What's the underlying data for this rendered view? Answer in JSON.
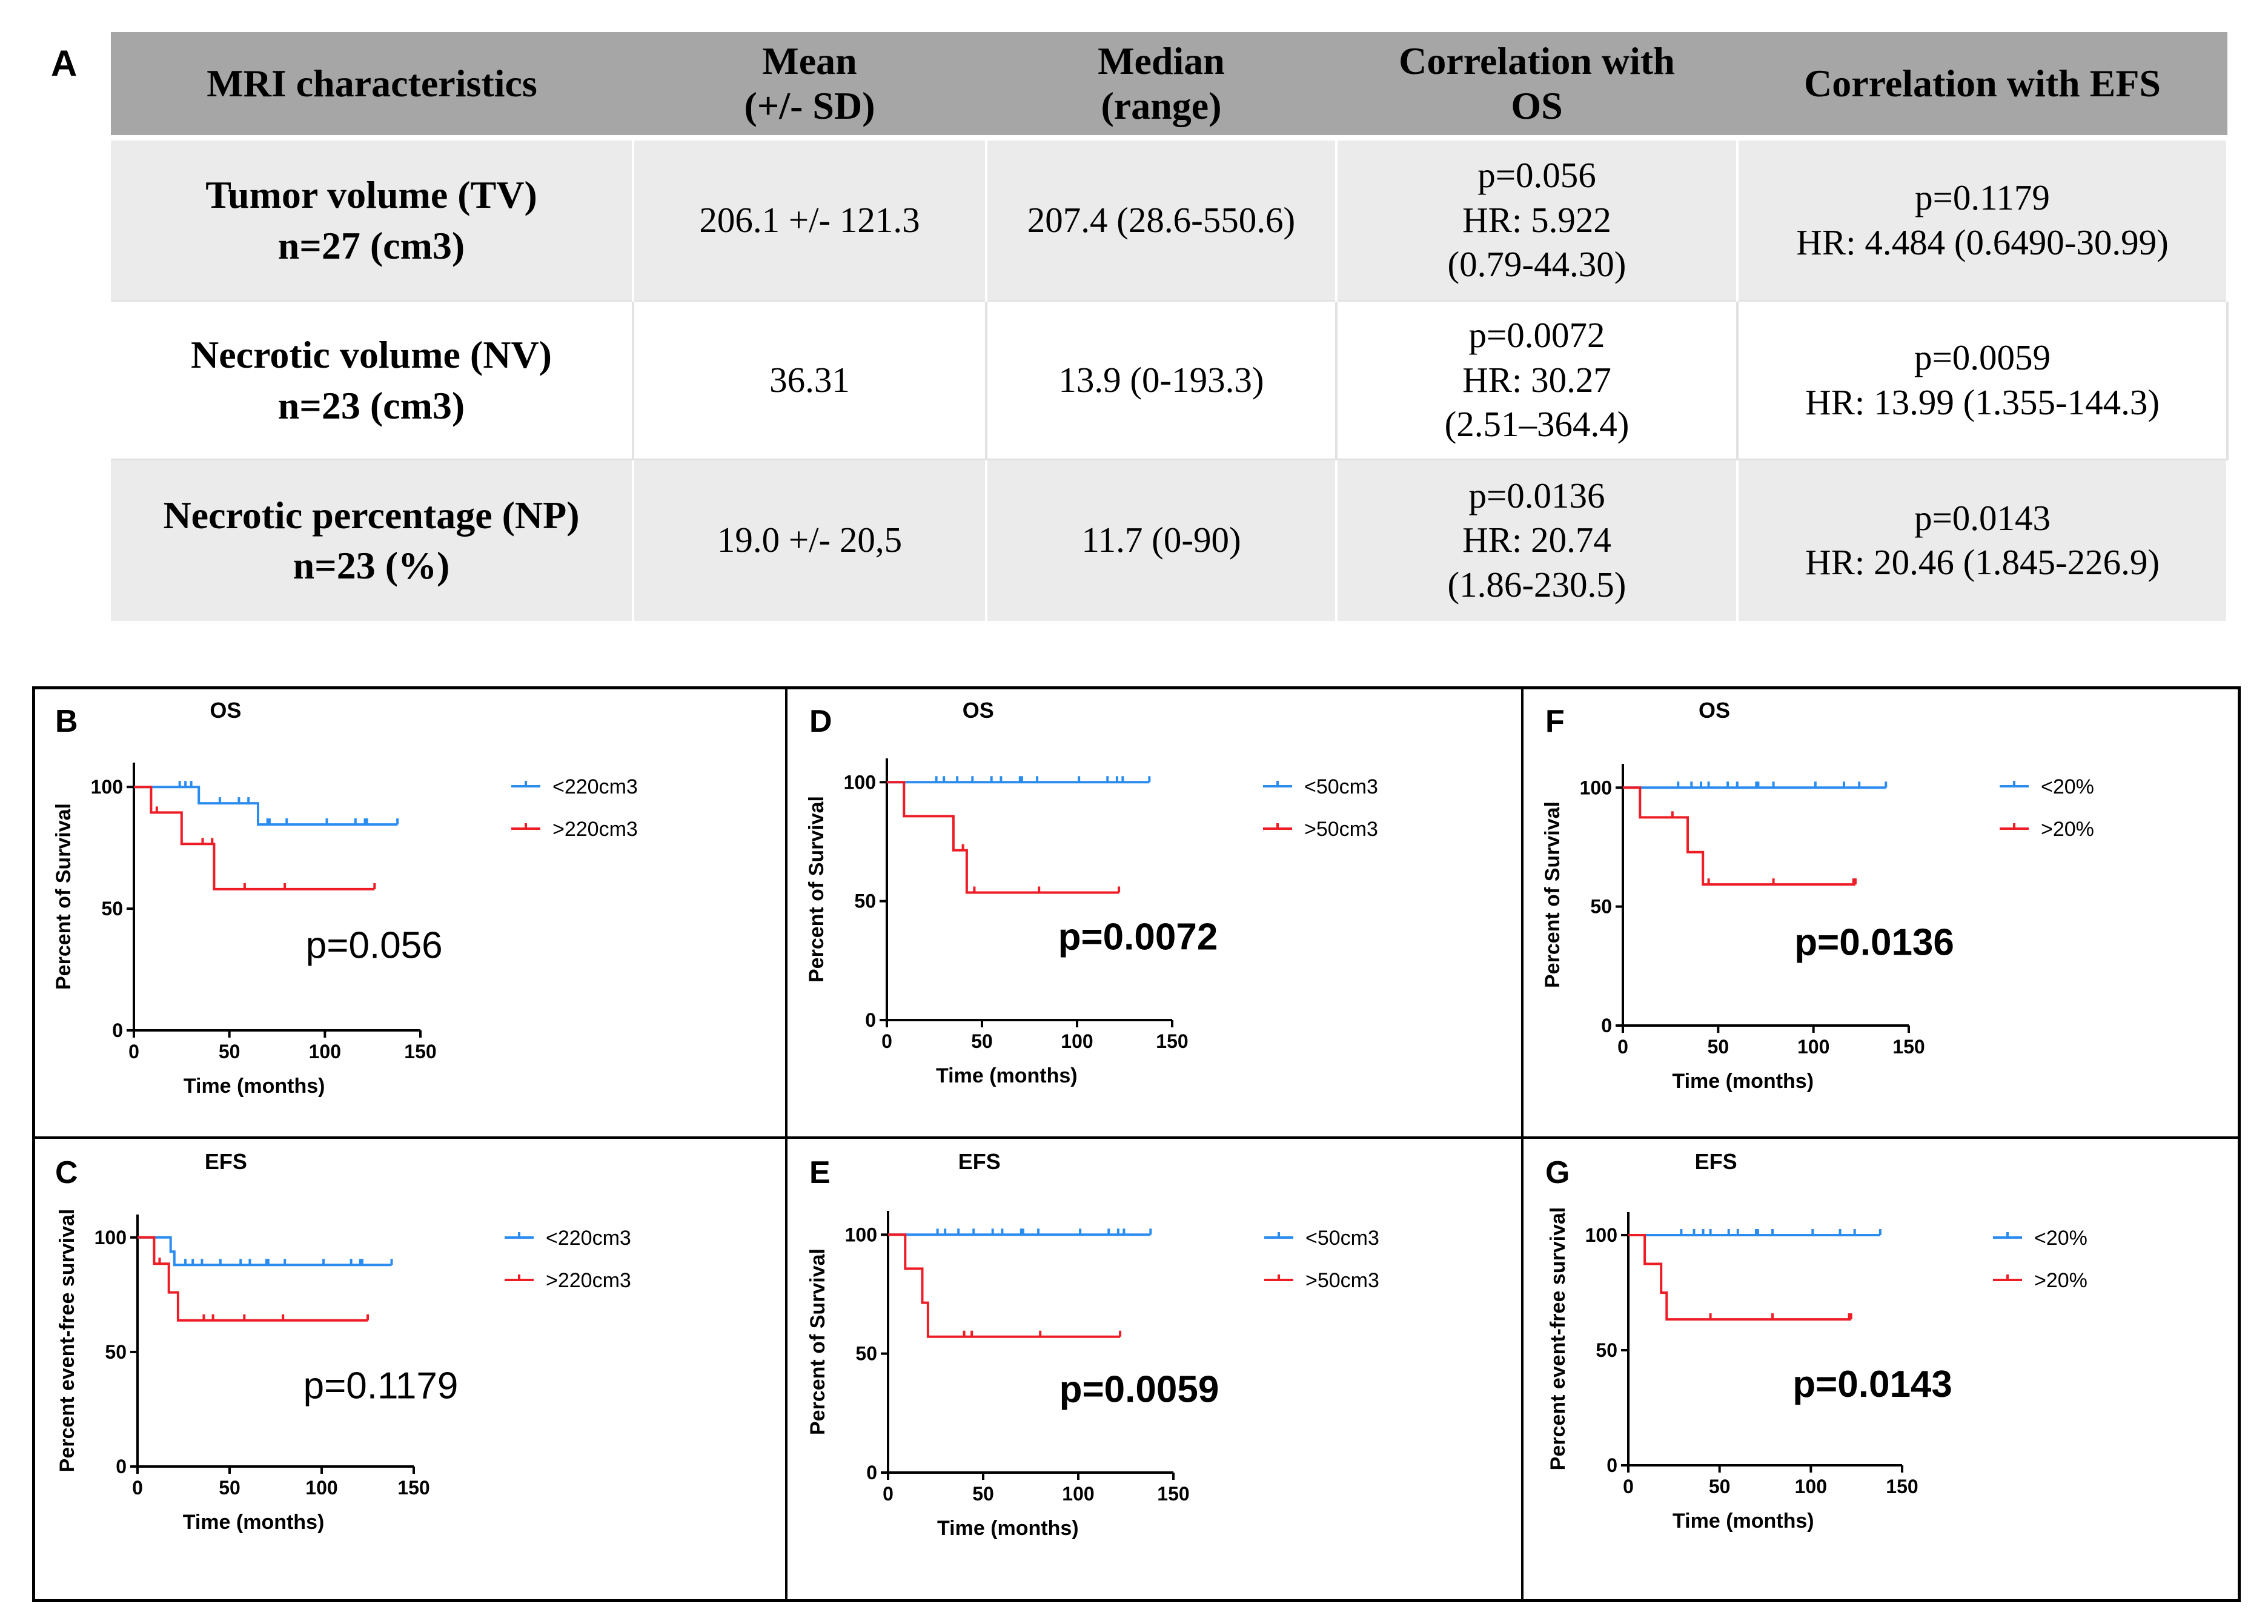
{
  "table": {
    "panel_label": "A",
    "headers": [
      "MRI characteristics",
      "Mean (+/- SD)",
      "Median (range)",
      "Correlation with OS",
      "Correlation with EFS"
    ],
    "header_lines": [
      [
        "MRI characteristics"
      ],
      [
        "Mean",
        "(+/- SD)"
      ],
      [
        "Median",
        "(range)"
      ],
      [
        "Correlation with",
        "OS"
      ],
      [
        "Correlation with EFS"
      ]
    ],
    "rows": [
      {
        "characteristic": [
          "Tumor volume (TV)",
          "n=27 (cm3)"
        ],
        "mean": [
          "206.1 +/- 121.3"
        ],
        "median": [
          "207.4 (28.6-550.6)"
        ],
        "os": [
          "p=0.056",
          "HR: 5.922",
          "(0.79-44.30)"
        ],
        "efs": [
          "p=0.1179",
          "HR: 4.484 (0.6490-30.99)"
        ]
      },
      {
        "characteristic": [
          "Necrotic volume (NV)",
          "n=23 (cm3)"
        ],
        "mean": [
          "36.31"
        ],
        "median": [
          "13.9 (0-193.3)"
        ],
        "os": [
          "p=0.0072",
          "HR: 30.27",
          "(2.51–364.4)"
        ],
        "efs": [
          "p=0.0059",
          "HR: 13.99 (1.355-144.3)"
        ]
      },
      {
        "characteristic": [
          "Necrotic percentage (NP)",
          "n=23 (%)"
        ],
        "mean": [
          "19.0 +/- 20,5"
        ],
        "median": [
          "11.7 (0-90)"
        ],
        "os": [
          "p=0.0136",
          "HR: 20.74",
          "(1.86-230.5)"
        ],
        "efs": [
          "p=0.0143",
          "HR: 20.46 (1.845-226.9)"
        ]
      }
    ]
  },
  "colors": {
    "series_low": "#2b8cf0",
    "series_high": "#ee1c25",
    "table_header": "#a6a6a6",
    "table_shade": "#ebebeb"
  },
  "chart_data": [
    {
      "panel": "B",
      "type": "line",
      "step": true,
      "title": "OS",
      "xlabel": "Time (months)",
      "ylabel": "Percent of Survival",
      "xlim": [
        0,
        150
      ],
      "ylim": [
        0,
        110
      ],
      "xticks": [
        0,
        50,
        100,
        150
      ],
      "yticks": [
        0,
        50,
        100
      ],
      "annotation": "p=0.056",
      "annotation_bold": false,
      "series": [
        {
          "name": "<220cm3",
          "color": "#2b8cf0",
          "x": [
            0,
            34,
            34,
            65,
            65,
            138
          ],
          "y": [
            100,
            100,
            93.3,
            93.3,
            84.6,
            84.6
          ],
          "censor_x": [
            24,
            27,
            30,
            45,
            55,
            60,
            70,
            71,
            80,
            101,
            116,
            121,
            122,
            138
          ],
          "censor_y": [
            100,
            100,
            100,
            93.3,
            93.3,
            93.3,
            84.6,
            84.6,
            84.6,
            84.6,
            84.6,
            84.6,
            84.6,
            84.6
          ]
        },
        {
          "name": ">220cm3",
          "color": "#ee1c25",
          "x": [
            0,
            9,
            9,
            25,
            25,
            42,
            42,
            126
          ],
          "y": [
            100,
            100,
            89.5,
            89.5,
            76.6,
            76.6,
            58,
            58
          ],
          "censor_x": [
            12,
            36,
            41,
            58,
            79,
            126
          ],
          "censor_y": [
            89.5,
            76.6,
            76.6,
            58,
            58,
            58
          ]
        }
      ]
    },
    {
      "panel": "C",
      "type": "line",
      "step": true,
      "title": "EFS",
      "xlabel": "Time (months)",
      "ylabel": "Percent event-free survival",
      "xlim": [
        0,
        150
      ],
      "ylim": [
        0,
        110
      ],
      "xticks": [
        0,
        50,
        100,
        150
      ],
      "yticks": [
        0,
        50,
        100
      ],
      "annotation": "p=0.1179",
      "annotation_bold": false,
      "series": [
        {
          "name": "<220cm3",
          "color": "#2b8cf0",
          "x": [
            0,
            18,
            18,
            20,
            20,
            138
          ],
          "y": [
            100,
            100,
            93.8,
            93.8,
            88,
            88
          ],
          "censor_x": [
            26,
            30,
            35,
            45,
            56,
            61,
            70,
            71,
            80,
            101,
            116,
            121,
            122,
            138
          ],
          "censor_y": [
            88,
            88,
            88,
            88,
            88,
            88,
            88,
            88,
            88,
            88,
            88,
            88,
            88,
            88
          ]
        },
        {
          "name": ">220cm3",
          "color": "#ee1c25",
          "x": [
            0,
            9,
            9,
            17,
            17,
            22,
            22,
            125
          ],
          "y": [
            100,
            100,
            88.5,
            88.5,
            76,
            76,
            63.8,
            63.8
          ],
          "censor_x": [
            12,
            36,
            41,
            58,
            79,
            125
          ],
          "censor_y": [
            88.5,
            63.8,
            63.8,
            63.8,
            63.8,
            63.8
          ]
        }
      ]
    },
    {
      "panel": "D",
      "type": "line",
      "step": true,
      "title": "OS",
      "xlabel": "Time (months)",
      "ylabel": "Percent of Survival",
      "xlim": [
        0,
        150
      ],
      "ylim": [
        0,
        110
      ],
      "xticks": [
        0,
        50,
        100,
        150
      ],
      "yticks": [
        0,
        50,
        100
      ],
      "annotation": "p=0.0072",
      "annotation_bold": true,
      "series": [
        {
          "name": "<50cm3",
          "color": "#2b8cf0",
          "x": [
            0,
            138
          ],
          "y": [
            100,
            100
          ],
          "censor_x": [
            26,
            30,
            37,
            45,
            55,
            60,
            70,
            71,
            79,
            101,
            116,
            121,
            124,
            138
          ],
          "censor_y": [
            100,
            100,
            100,
            100,
            100,
            100,
            100,
            100,
            100,
            100,
            100,
            100,
            100,
            100
          ]
        },
        {
          "name": ">50cm3",
          "color": "#ee1c25",
          "x": [
            0,
            9,
            9,
            35,
            35,
            42,
            42,
            122
          ],
          "y": [
            100,
            100,
            85.7,
            85.7,
            71.4,
            71.4,
            53.6,
            53.6
          ],
          "censor_x": [
            40,
            46,
            80,
            122
          ],
          "censor_y": [
            71.4,
            53.6,
            53.6,
            53.6
          ]
        }
      ]
    },
    {
      "panel": "E",
      "type": "line",
      "step": true,
      "title": "EFS",
      "xlabel": "Time (months)",
      "ylabel": "Percent of Survival",
      "xlim": [
        0,
        150
      ],
      "ylim": [
        0,
        110
      ],
      "xticks": [
        0,
        50,
        100,
        150
      ],
      "yticks": [
        0,
        50,
        100
      ],
      "annotation": "p=0.0059",
      "annotation_bold": true,
      "series": [
        {
          "name": "<50cm3",
          "color": "#2b8cf0",
          "x": [
            0,
            138
          ],
          "y": [
            100,
            100
          ],
          "censor_x": [
            26,
            30,
            37,
            45,
            55,
            60,
            70,
            71,
            79,
            101,
            116,
            121,
            124,
            138
          ],
          "censor_y": [
            100,
            100,
            100,
            100,
            100,
            100,
            100,
            100,
            100,
            100,
            100,
            100,
            100,
            100
          ]
        },
        {
          "name": ">50cm3",
          "color": "#ee1c25",
          "x": [
            0,
            9,
            9,
            18,
            18,
            21,
            21,
            122
          ],
          "y": [
            100,
            100,
            85.7,
            85.7,
            71.4,
            71.4,
            57.1,
            57.1
          ],
          "censor_x": [
            40,
            44,
            80,
            122
          ],
          "censor_y": [
            57.1,
            57.1,
            57.1,
            57.1
          ]
        }
      ]
    },
    {
      "panel": "F",
      "type": "line",
      "step": true,
      "title": "OS",
      "xlabel": "Time (months)",
      "ylabel": "Percent of Survival",
      "xlim": [
        0,
        150
      ],
      "ylim": [
        0,
        110
      ],
      "xticks": [
        0,
        50,
        100,
        150
      ],
      "yticks": [
        0,
        50,
        100
      ],
      "annotation": "p=0.0136",
      "annotation_bold": true,
      "series": [
        {
          "name": "<20%",
          "color": "#2b8cf0",
          "x": [
            0,
            138
          ],
          "y": [
            100,
            100
          ],
          "censor_x": [
            29,
            36,
            41,
            45,
            55,
            60,
            70,
            71,
            79,
            101,
            116,
            124,
            138
          ],
          "censor_y": [
            100,
            100,
            100,
            100,
            100,
            100,
            100,
            100,
            100,
            100,
            100,
            100,
            100
          ]
        },
        {
          "name": ">20%",
          "color": "#ee1c25",
          "x": [
            0,
            9,
            9,
            34,
            34,
            42,
            42,
            122
          ],
          "y": [
            100,
            100,
            87.5,
            87.5,
            72.9,
            72.9,
            59.3,
            59.3
          ],
          "censor_x": [
            26,
            45,
            79,
            121,
            122
          ],
          "censor_y": [
            87.5,
            59.3,
            59.3,
            59.3,
            59.3
          ]
        }
      ]
    },
    {
      "panel": "G",
      "type": "line",
      "step": true,
      "title": "EFS",
      "xlabel": "Time (months)",
      "ylabel": "Percent event-free survival",
      "xlim": [
        0,
        150
      ],
      "ylim": [
        0,
        110
      ],
      "xticks": [
        0,
        50,
        100,
        150
      ],
      "yticks": [
        0,
        50,
        100
      ],
      "annotation": "p=0.0143",
      "annotation_bold": true,
      "series": [
        {
          "name": "<20%",
          "color": "#2b8cf0",
          "x": [
            0,
            138
          ],
          "y": [
            100,
            100
          ],
          "censor_x": [
            29,
            36,
            41,
            45,
            55,
            60,
            70,
            71,
            79,
            101,
            116,
            124,
            138
          ],
          "censor_y": [
            100,
            100,
            100,
            100,
            100,
            100,
            100,
            100,
            100,
            100,
            100,
            100,
            100
          ]
        },
        {
          "name": ">20%",
          "color": "#ee1c25",
          "x": [
            0,
            9,
            9,
            18,
            18,
            21,
            21,
            122
          ],
          "y": [
            100,
            100,
            87.5,
            87.5,
            75,
            75,
            63.4,
            63.4
          ],
          "censor_x": [
            45,
            79,
            121,
            122
          ],
          "censor_y": [
            63.4,
            63.4,
            63.4,
            63.4
          ]
        }
      ]
    }
  ]
}
